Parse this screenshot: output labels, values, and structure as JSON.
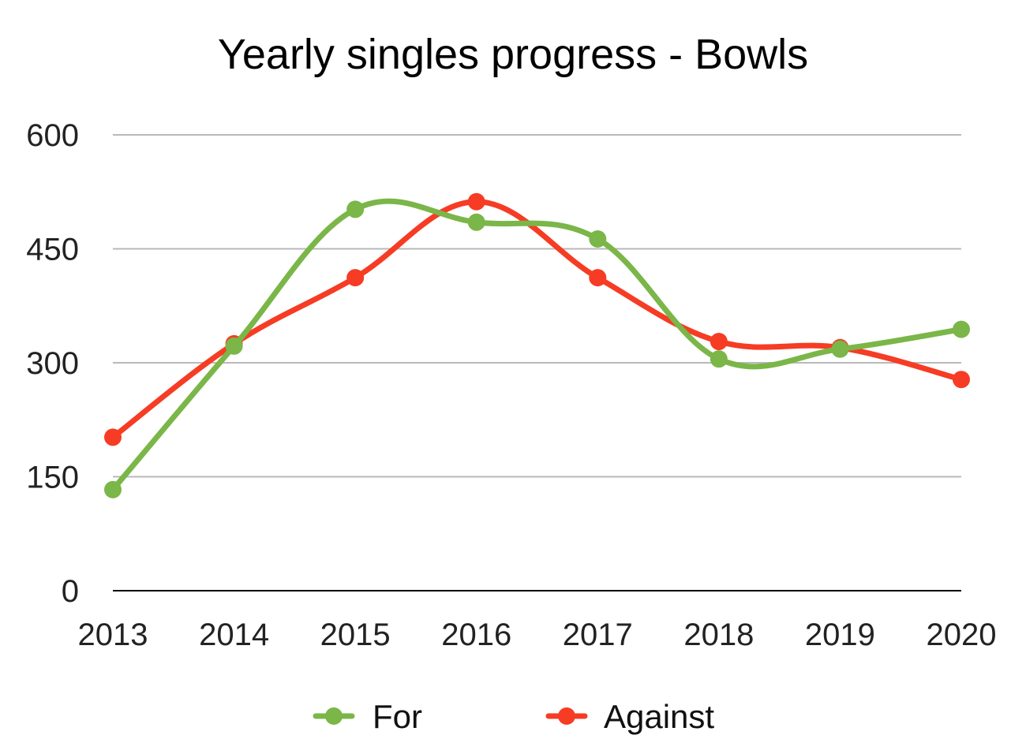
{
  "chart_data": {
    "type": "line",
    "title": "Yearly singles progress - Bowls",
    "xlabel": "",
    "ylabel": "",
    "categories": [
      "2013",
      "2014",
      "2015",
      "2016",
      "2017",
      "2018",
      "2019",
      "2020"
    ],
    "ylim": [
      0,
      600
    ],
    "yticks": [
      0,
      150,
      300,
      450,
      600
    ],
    "grid": true,
    "smooth": true,
    "legend_position": "bottom",
    "series": [
      {
        "name": "For",
        "color": "#7ab648",
        "values": [
          133,
          322,
          502,
          485,
          463,
          305,
          318,
          344
        ]
      },
      {
        "name": "Against",
        "color": "#f63c24",
        "values": [
          202,
          325,
          412,
          512,
          412,
          328,
          320,
          278
        ]
      }
    ]
  }
}
